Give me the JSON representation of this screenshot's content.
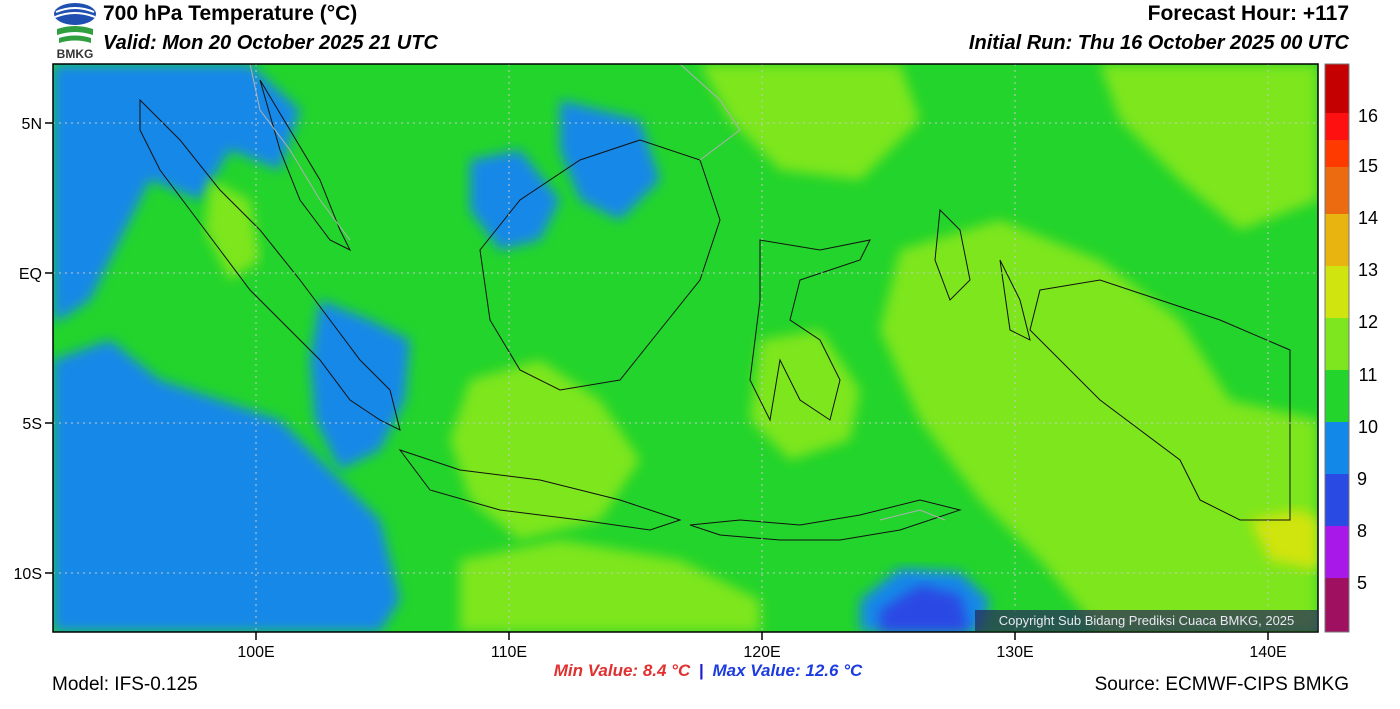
{
  "header": {
    "title": "700 hPa Temperature (°C)",
    "valid": "Valid: Mon 20 October 2025 21 UTC",
    "forecast_hour": "Forecast Hour: +117",
    "initial_run": "Initial Run: Thu 16 October 2025 00 UTC"
  },
  "logo": {
    "text": "BMKG",
    "colors": [
      "#1f4fb0",
      "#2f9f3f"
    ]
  },
  "map": {
    "lat_labels": [
      "5N",
      "EQ",
      "5S",
      "10S"
    ],
    "lat_values": [
      5,
      0,
      -5,
      -10
    ],
    "lon_labels": [
      "100E",
      "110E",
      "120E",
      "130E",
      "140E"
    ],
    "lon_values": [
      100,
      110,
      120,
      130,
      140
    ],
    "lon_range": [
      92,
      142
    ],
    "lat_range": [
      -12,
      7
    ],
    "background_color": "#23d42c",
    "gridlines": "dotted"
  },
  "colorbar": {
    "labels": [
      "16",
      "15",
      "14",
      "13",
      "12",
      "11",
      "10",
      "9",
      "8",
      "5"
    ],
    "colors": [
      "#c40000",
      "#ff1010",
      "#ff3a00",
      "#ec6a10",
      "#e8b410",
      "#d0e410",
      "#7ee61e",
      "#22d42c",
      "#1288e8",
      "#2a4ae4",
      "#a818e8",
      "#a01060"
    ]
  },
  "footer": {
    "model": "Model: IFS-0.125",
    "source": "Source: ECMWF-CIPS BMKG",
    "min_value": "Min Value: 8.4 °C",
    "separator": "|",
    "max_value": "Max Value: 12.6 °C",
    "copyright": "Copyright Sub Bidang Prediksi Cuaca BMKG, 2025"
  }
}
